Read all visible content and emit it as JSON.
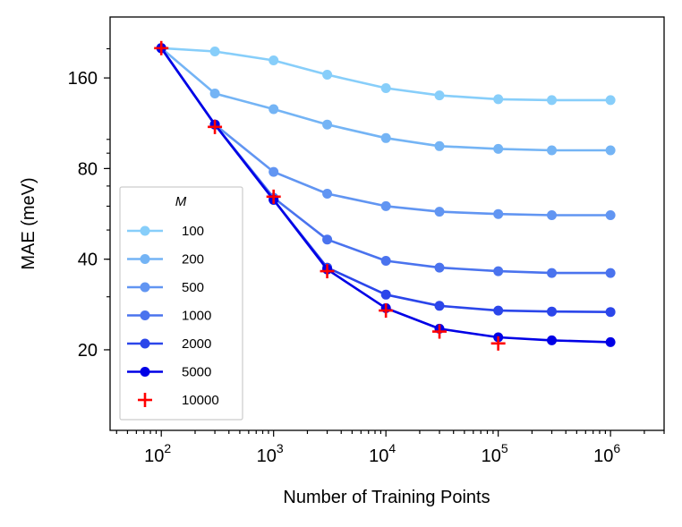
{
  "chart_data": {
    "type": "line",
    "xlabel": "Number of Training Points",
    "ylabel": "MAE (meV)",
    "x_scale": "log",
    "y_scale": "log",
    "xlim": [
      35,
      3000000
    ],
    "ylim": [
      10.8,
      255
    ],
    "x_ticks": [
      100,
      1000,
      10000,
      100000,
      1000000
    ],
    "x_tick_labels": [
      {
        "base": "10",
        "exp": "2"
      },
      {
        "base": "10",
        "exp": "3"
      },
      {
        "base": "10",
        "exp": "4"
      },
      {
        "base": "10",
        "exp": "5"
      },
      {
        "base": "10",
        "exp": "6"
      }
    ],
    "y_ticks": [
      20,
      40,
      80,
      160
    ],
    "y_tick_labels": [
      "20",
      "40",
      "80",
      "160"
    ],
    "grid": false,
    "legend": {
      "title": "M",
      "placement": "lower-left"
    },
    "x": [
      100,
      300,
      1000,
      3000,
      10000,
      30000,
      100000,
      300000,
      1000000
    ],
    "series": [
      {
        "name": "100",
        "color": "#87cefa",
        "values": [
          201,
          196,
          183,
          164,
          148,
          140,
          136,
          135,
          135
        ]
      },
      {
        "name": "200",
        "color": "#74b4f5",
        "values": [
          201,
          142,
          126,
          112,
          101,
          95,
          93,
          92,
          92
        ]
      },
      {
        "name": "500",
        "color": "#6195f2",
        "values": [
          201,
          112,
          78,
          66,
          60,
          57.5,
          56.5,
          56,
          56
        ]
      },
      {
        "name": "1000",
        "color": "#4a73ee",
        "values": [
          201,
          112,
          64,
          46.5,
          39.5,
          37.5,
          36.5,
          36,
          36
        ]
      },
      {
        "name": "2000",
        "color": "#2b46ea",
        "values": [
          201,
          112,
          63,
          37.5,
          30.5,
          28,
          27,
          26.8,
          26.7
        ]
      },
      {
        "name": "5000",
        "color": "#0000e6",
        "values": [
          201,
          112,
          63,
          37,
          27.5,
          23.5,
          22,
          21.5,
          21.2
        ]
      }
    ],
    "scatter_series": [
      {
        "name": "10000",
        "color": "#ff0000",
        "marker": "+",
        "x": [
          100,
          300,
          1000,
          3000,
          10000,
          30000,
          100000
        ],
        "values": [
          201,
          110,
          64.5,
          36.5,
          27,
          23,
          21
        ]
      }
    ]
  }
}
